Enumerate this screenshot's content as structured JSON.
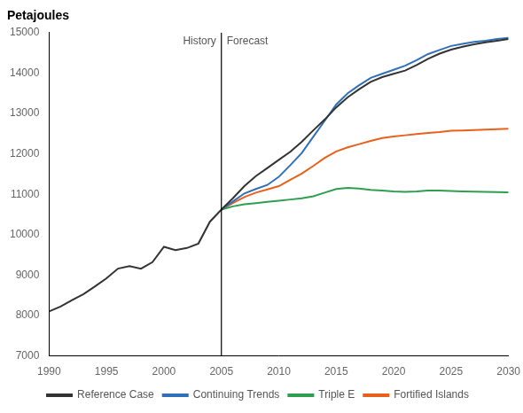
{
  "chart_data": {
    "type": "line",
    "title": "Petajoules",
    "x": [
      1990,
      1991,
      1992,
      1993,
      1994,
      1995,
      1996,
      1997,
      1998,
      1999,
      2000,
      2001,
      2002,
      2003,
      2004,
      2005,
      2006,
      2007,
      2008,
      2009,
      2010,
      2011,
      2012,
      2013,
      2014,
      2015,
      2016,
      2017,
      2018,
      2019,
      2020,
      2021,
      2022,
      2023,
      2024,
      2025,
      2026,
      2027,
      2028,
      2029,
      2030
    ],
    "series": [
      {
        "name": "Reference Case",
        "color": "#333333",
        "values": [
          8100,
          8220,
          8380,
          8530,
          8720,
          8920,
          9160,
          9220,
          9160,
          9320,
          9700,
          9620,
          9670,
          9780,
          10320,
          10620,
          10900,
          11200,
          11450,
          11650,
          11850,
          12050,
          12300,
          12580,
          12850,
          13150,
          13400,
          13600,
          13780,
          13900,
          13980,
          14060,
          14200,
          14350,
          14480,
          14580,
          14650,
          14710,
          14760,
          14800,
          14840
        ]
      },
      {
        "name": "Continuing Trends",
        "color": "#3070b8",
        "values": [
          null,
          null,
          null,
          null,
          null,
          null,
          null,
          null,
          null,
          null,
          null,
          null,
          null,
          null,
          null,
          10620,
          10820,
          11020,
          11130,
          11230,
          11430,
          11720,
          12020,
          12420,
          12820,
          13220,
          13500,
          13700,
          13880,
          13980,
          14080,
          14180,
          14320,
          14470,
          14570,
          14670,
          14720,
          14770,
          14800,
          14840,
          14870
        ]
      },
      {
        "name": "Triple E",
        "color": "#2e9e4f",
        "values": [
          null,
          null,
          null,
          null,
          null,
          null,
          null,
          null,
          null,
          null,
          null,
          null,
          null,
          null,
          null,
          10620,
          10700,
          10750,
          10780,
          10810,
          10840,
          10870,
          10900,
          10950,
          11040,
          11130,
          11160,
          11140,
          11110,
          11090,
          11070,
          11060,
          11070,
          11090,
          11090,
          11080,
          11070,
          11065,
          11060,
          11055,
          11050
        ]
      },
      {
        "name": "Fortified Islands",
        "color": "#e8601c",
        "values": [
          null,
          null,
          null,
          null,
          null,
          null,
          null,
          null,
          null,
          null,
          null,
          null,
          null,
          null,
          null,
          10620,
          10780,
          10930,
          11040,
          11120,
          11200,
          11360,
          11510,
          11700,
          11900,
          12060,
          12160,
          12240,
          12320,
          12390,
          12430,
          12460,
          12490,
          12520,
          12540,
          12570,
          12580,
          12590,
          12600,
          12610,
          12620
        ]
      }
    ],
    "divider": 2005,
    "annotations": [
      "History",
      "Forecast"
    ],
    "xlim": [
      1990,
      2030
    ],
    "xticks": [
      1990,
      1995,
      2000,
      2005,
      2010,
      2015,
      2020,
      2025,
      2030
    ],
    "ylim": [
      7000,
      15000
    ],
    "yticks": [
      7000,
      8000,
      9000,
      10000,
      11000,
      12000,
      13000,
      14000,
      15000
    ],
    "grid": false,
    "legend": "bottom"
  }
}
